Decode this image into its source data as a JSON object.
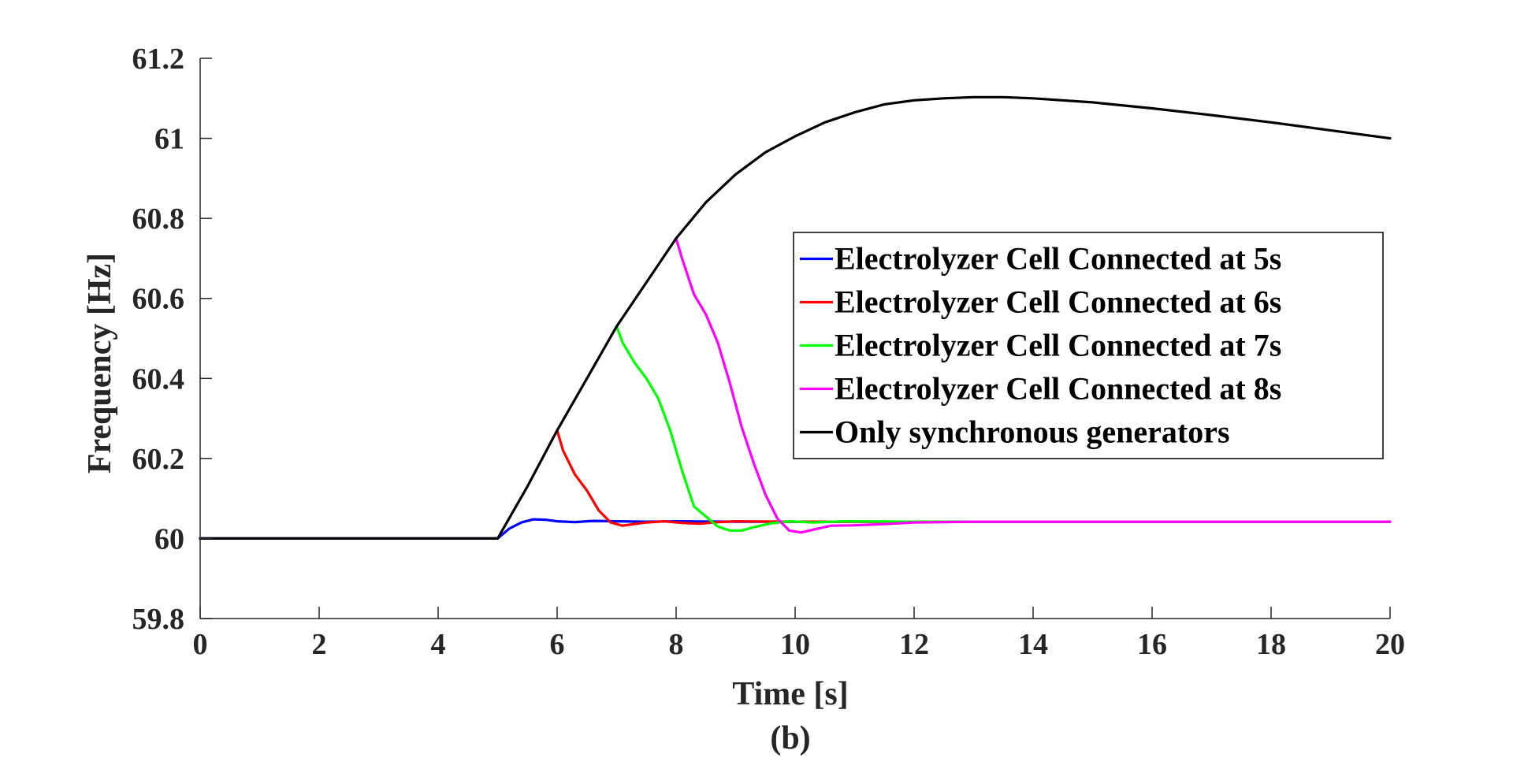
{
  "chart_data": {
    "type": "line",
    "xlabel": "Time [s]",
    "ylabel": "Frequency [Hz]",
    "caption": "(b)",
    "xlim": [
      0,
      20
    ],
    "ylim": [
      59.8,
      61.2
    ],
    "xticks": [
      0,
      2,
      4,
      6,
      8,
      10,
      12,
      14,
      16,
      18,
      20
    ],
    "xtick_labels": [
      "0",
      "2",
      "4",
      "6",
      "8",
      "10",
      "12",
      "14",
      "16",
      "18",
      "20"
    ],
    "yticks": [
      59.8,
      60,
      60.2,
      60.4,
      60.6,
      60.8,
      61,
      61.2
    ],
    "ytick_labels": [
      "59.8",
      "60",
      "60.2",
      "60.4",
      "60.6",
      "60.8",
      "61",
      "61.2"
    ],
    "grid": false,
    "legend_position": "right",
    "series": [
      {
        "name": "Electrolyzer Cell Connected at 5s",
        "color": "#0000ff",
        "x": [
          0,
          5,
          5.2,
          5.4,
          5.6,
          5.8,
          6.0,
          6.3,
          6.6,
          7.0,
          7.5,
          8.0,
          9.0,
          10,
          12,
          14,
          16,
          18,
          20
        ],
        "y": [
          60,
          60,
          60.025,
          60.04,
          60.048,
          60.047,
          60.043,
          60.041,
          60.044,
          60.043,
          60.042,
          60.043,
          60.042,
          60.042,
          60.042,
          60.042,
          60.042,
          60.042,
          60.042
        ]
      },
      {
        "name": "Electrolyzer Cell Connected at 6s",
        "color": "#ff0000",
        "x": [
          6.0,
          6.1,
          6.3,
          6.5,
          6.7,
          6.9,
          7.1,
          7.3,
          7.5,
          7.8,
          8.1,
          8.4,
          8.7,
          9.0,
          10,
          12,
          14,
          16,
          18,
          20
        ],
        "y": [
          60.27,
          60.22,
          60.16,
          60.12,
          60.07,
          60.04,
          60.032,
          60.036,
          60.04,
          60.043,
          60.039,
          60.037,
          60.041,
          60.043,
          60.042,
          60.042,
          60.042,
          60.042,
          60.042,
          60.042
        ]
      },
      {
        "name": "Electrolyzer Cell Connected at 7s",
        "color": "#00ff00",
        "x": [
          7.0,
          7.1,
          7.3,
          7.5,
          7.7,
          7.9,
          8.1,
          8.3,
          8.5,
          8.7,
          8.9,
          9.1,
          9.3,
          9.6,
          9.9,
          10.3,
          10.8,
          12,
          14,
          16,
          18,
          20
        ],
        "y": [
          60.53,
          60.49,
          60.44,
          60.4,
          60.35,
          60.27,
          60.17,
          60.08,
          60.055,
          60.03,
          60.02,
          60.02,
          60.028,
          60.038,
          60.043,
          60.04,
          60.043,
          60.042,
          60.042,
          60.042,
          60.042,
          60.042
        ]
      },
      {
        "name": "Electrolyzer Cell Connected at 8s",
        "color": "#ff00ff",
        "x": [
          8.0,
          8.1,
          8.3,
          8.5,
          8.7,
          8.9,
          9.1,
          9.3,
          9.5,
          9.7,
          9.9,
          10.1,
          10.3,
          10.6,
          11.0,
          11.5,
          12,
          13,
          14,
          16,
          18,
          20
        ],
        "y": [
          60.75,
          60.7,
          60.61,
          60.56,
          60.49,
          60.39,
          60.28,
          60.19,
          60.11,
          60.05,
          60.02,
          60.015,
          60.022,
          60.032,
          60.033,
          60.036,
          60.04,
          60.042,
          60.042,
          60.042,
          60.042,
          60.042
        ]
      },
      {
        "name": "Only synchronous generators",
        "color": "#000000",
        "x": [
          0,
          5,
          5.5,
          6,
          6.5,
          7,
          7.5,
          8,
          8.5,
          9,
          9.5,
          10,
          10.5,
          11,
          11.5,
          12,
          12.5,
          13,
          13.5,
          14,
          15,
          16,
          17,
          18,
          19,
          20
        ],
        "y": [
          60,
          60,
          60.13,
          60.27,
          60.4,
          60.53,
          60.64,
          60.75,
          60.84,
          60.91,
          60.965,
          61.005,
          61.04,
          61.065,
          61.085,
          61.095,
          61.1,
          61.103,
          61.103,
          61.1,
          61.09,
          61.075,
          61.058,
          61.04,
          61.02,
          61.0
        ]
      }
    ]
  }
}
